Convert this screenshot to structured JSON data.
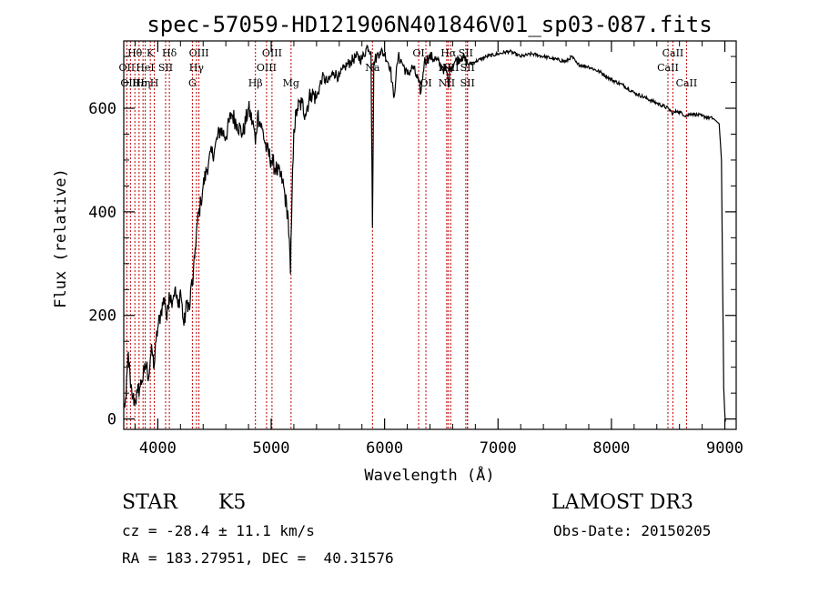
{
  "chart_data": {
    "type": "line",
    "title": "spec-57059-HD121906N401846V01_sp03-087.fits",
    "xlabel": "Wavelength (Å)",
    "ylabel": "Flux (relative)",
    "xlim": [
      3700,
      9100
    ],
    "ylim": [
      -20,
      730
    ],
    "x_ticks": [
      4000,
      5000,
      6000,
      7000,
      8000,
      9000
    ],
    "y_ticks": [
      0,
      200,
      400,
      600
    ],
    "grid": false,
    "series": [
      {
        "name": "flux",
        "x": [
          3700,
          3720,
          3740,
          3760,
          3780,
          3800,
          3820,
          3840,
          3860,
          3880,
          3900,
          3920,
          3935,
          3950,
          3968,
          3985,
          4000,
          4030,
          4060,
          4080,
          4100,
          4120,
          4150,
          4180,
          4200,
          4230,
          4260,
          4280,
          4300,
          4310,
          4330,
          4350,
          4380,
          4400,
          4450,
          4500,
          4550,
          4600,
          4650,
          4700,
          4750,
          4800,
          4850,
          4861,
          4880,
          4920,
          4960,
          5000,
          5050,
          5100,
          5150,
          5170,
          5183,
          5200,
          5230,
          5270,
          5300,
          5350,
          5400,
          5450,
          5500,
          5550,
          5600,
          5650,
          5700,
          5750,
          5800,
          5850,
          5880,
          5893,
          5905,
          5930,
          5960,
          6000,
          6050,
          6080,
          6100,
          6120,
          6150,
          6200,
          6250,
          6300,
          6320,
          6350,
          6400,
          6450,
          6500,
          6550,
          6563,
          6580,
          6620,
          6680,
          6740,
          6800,
          6900,
          7000,
          7100,
          7200,
          7300,
          7400,
          7500,
          7600,
          7650,
          7700,
          7800,
          7900,
          8000,
          8100,
          8200,
          8300,
          8400,
          8500,
          8542,
          8580,
          8662,
          8700,
          8800,
          8900,
          8950,
          8970,
          8990,
          9000,
          9005
        ],
        "y": [
          20,
          40,
          130,
          60,
          40,
          35,
          50,
          60,
          75,
          90,
          105,
          80,
          120,
          130,
          100,
          150,
          175,
          210,
          235,
          190,
          245,
          230,
          250,
          215,
          250,
          180,
          230,
          210,
          270,
          260,
          330,
          380,
          420,
          450,
          500,
          520,
          560,
          545,
          590,
          570,
          550,
          600,
          560,
          530,
          590,
          560,
          520,
          500,
          480,
          460,
          390,
          280,
          420,
          560,
          600,
          610,
          590,
          630,
          620,
          660,
          650,
          670,
          660,
          680,
          690,
          700,
          695,
          720,
          710,
          370,
          690,
          700,
          710,
          705,
          680,
          620,
          660,
          700,
          690,
          665,
          680,
          650,
          630,
          690,
          700,
          695,
          680,
          670,
          640,
          680,
          690,
          700,
          685,
          690,
          700,
          705,
          710,
          700,
          705,
          700,
          695,
          690,
          700,
          685,
          680,
          670,
          655,
          645,
          630,
          620,
          610,
          600,
          590,
          595,
          585,
          590,
          585,
          580,
          570,
          500,
          60,
          10,
          -5
        ]
      }
    ],
    "spectral_lines": [
      {
        "label": "Hθ",
        "x": 3798,
        "row": 1
      },
      {
        "label": "K",
        "x": 3934,
        "row": 1
      },
      {
        "label": "Hδ",
        "x": 4102,
        "row": 1
      },
      {
        "label": "OII",
        "x": 3727,
        "row": 2
      },
      {
        "label": "HeI",
        "x": 3889,
        "row": 2
      },
      {
        "label": "SII",
        "x": 4069,
        "row": 2
      },
      {
        "label": "OIII",
        "x": 3759,
        "row": 3
      },
      {
        "label": "Hε",
        "x": 3835,
        "row": 3
      },
      {
        "label": "Hη",
        "x": 3870,
        "row": 3
      },
      {
        "label": "H",
        "x": 3969,
        "row": 3
      },
      {
        "label": "OIII",
        "x": 4363,
        "row": 1
      },
      {
        "label": "Hγ",
        "x": 4341,
        "row": 2
      },
      {
        "label": "G",
        "x": 4305,
        "row": 3
      },
      {
        "label": "OIII",
        "x": 5007,
        "row": 1
      },
      {
        "label": "OIII",
        "x": 4959,
        "row": 2
      },
      {
        "label": "Hβ",
        "x": 4861,
        "row": 3
      },
      {
        "label": "Mg",
        "x": 5175,
        "row": 3
      },
      {
        "label": "Na",
        "x": 5893,
        "row": 2
      },
      {
        "label": "OI",
        "x": 6300,
        "row": 1
      },
      {
        "label": "OI",
        "x": 6364,
        "row": 3
      },
      {
        "label": "Hα",
        "x": 6563,
        "row": 1
      },
      {
        "label": "SII",
        "x": 6716,
        "row": 1
      },
      {
        "label": "NII",
        "x": 6548,
        "row": 2
      },
      {
        "label": "NII",
        "x": 6583,
        "row": 2
      },
      {
        "label": "SII",
        "x": 6731,
        "row": 2
      },
      {
        "label": "NII",
        "x": 6548,
        "row": 3
      },
      {
        "label": "SII",
        "x": 6731,
        "row": 3
      },
      {
        "label": "CaII",
        "x": 8542,
        "row": 1
      },
      {
        "label": "CaII",
        "x": 8498,
        "row": 2
      },
      {
        "label": "CaII",
        "x": 8662,
        "row": 3
      }
    ]
  },
  "info": {
    "object_class": "STAR",
    "subclass": "K5",
    "survey": "LAMOST DR3",
    "redshift": "cz = -28.4 ± 11.1 km/s",
    "obs_date": "Obs-Date: 20150205",
    "coords": "RA = 183.27951, DEC =  40.31576"
  }
}
